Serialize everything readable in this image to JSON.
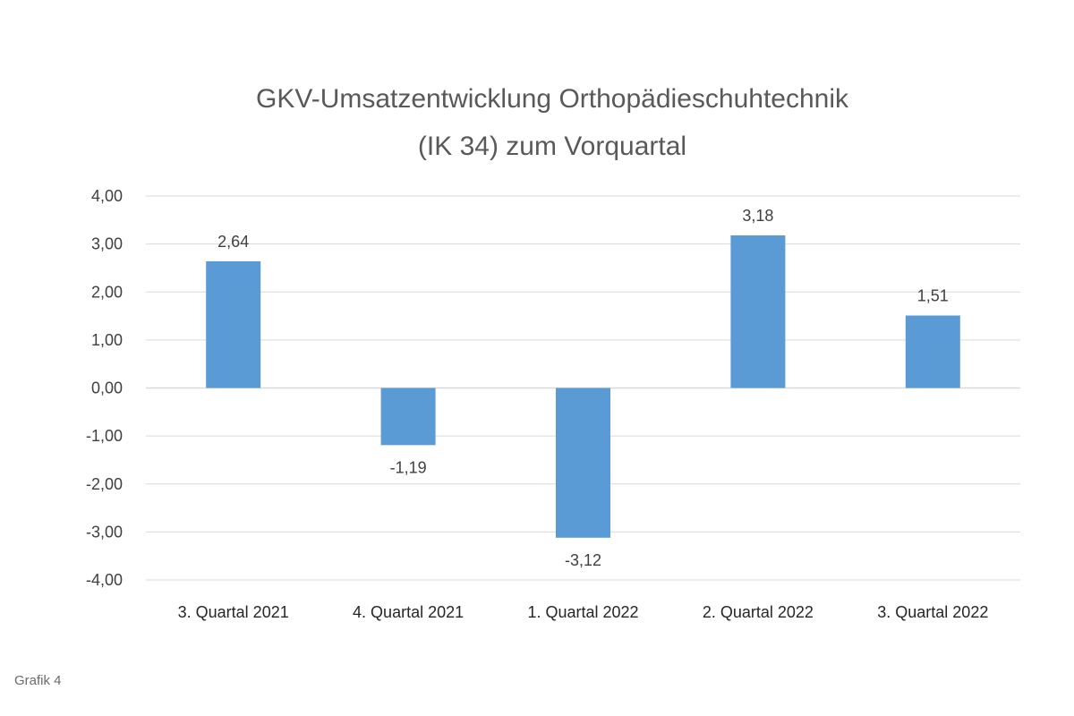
{
  "chart_data": {
    "type": "bar",
    "title_lines": [
      "GKV-Umsatzentwicklung  Orthopädieschuhtechnik",
      "(IK 34) zum Vorquartal"
    ],
    "categories": [
      "3. Quartal 2021",
      "4. Quartal 2021",
      "1. Quartal 2022",
      "2. Quartal 2022",
      "3. Quartal 2022"
    ],
    "values": [
      2.64,
      -1.19,
      -3.12,
      3.18,
      1.51
    ],
    "data_labels": [
      "2,64",
      "-1,19",
      "-3,12",
      "3,18",
      "1,51"
    ],
    "y_ticks": [
      4,
      3,
      2,
      1,
      0,
      -1,
      -2,
      -3,
      -4
    ],
    "y_tick_labels": [
      "4,00",
      "3,00",
      "2,00",
      "1,00",
      "0,00",
      "-1,00",
      "-2,00",
      "-3,00",
      "-4,00"
    ],
    "ylim": [
      -4,
      4
    ],
    "grid": true,
    "legend": "none",
    "bar_color": "#5b9bd5",
    "grid_color": "#d9d9d9"
  },
  "caption": "Grafik 4"
}
